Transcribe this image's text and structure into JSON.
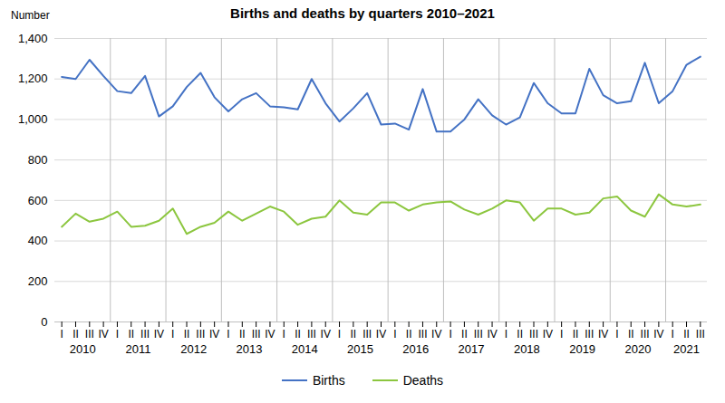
{
  "chart_data": {
    "type": "line",
    "title": "Births and deaths by quarters 2010–2021",
    "ylabel": "Number",
    "categories": [
      "I",
      "II",
      "III",
      "IV",
      "I",
      "II",
      "III",
      "IV",
      "I",
      "II",
      "III",
      "IV",
      "I",
      "II",
      "III",
      "IV",
      "I",
      "II",
      "III",
      "IV",
      "I",
      "II",
      "III",
      "IV",
      "I",
      "II",
      "III",
      "IV",
      "I",
      "II",
      "III",
      "IV",
      "I",
      "II",
      "III",
      "IV",
      "I",
      "II",
      "III",
      "IV",
      "I",
      "II",
      "III",
      "IV",
      "I",
      "II",
      "III"
    ],
    "x_groups": [
      "2010",
      "2011",
      "2012",
      "2013",
      "2014",
      "2015",
      "2016",
      "2017",
      "2018",
      "2019",
      "2020",
      "2021"
    ],
    "series": [
      {
        "name": "Births",
        "color": "#4472c4",
        "values": [
          1210,
          1200,
          1295,
          1215,
          1140,
          1130,
          1215,
          1015,
          1065,
          1160,
          1230,
          1110,
          1040,
          1100,
          1130,
          1065,
          1060,
          1050,
          1200,
          1080,
          990,
          1055,
          1130,
          975,
          980,
          950,
          1150,
          940,
          940,
          1000,
          1100,
          1020,
          975,
          1010,
          1180,
          1080,
          1030,
          1030,
          1250,
          1120,
          1080,
          1090,
          1280,
          1080,
          1140,
          1270,
          1310
        ]
      },
      {
        "name": "Deaths",
        "color": "#8cc63f",
        "values": [
          470,
          535,
          495,
          510,
          545,
          470,
          475,
          500,
          560,
          435,
          470,
          490,
          545,
          500,
          535,
          570,
          545,
          480,
          510,
          520,
          600,
          540,
          530,
          590,
          590,
          550,
          580,
          590,
          595,
          555,
          530,
          560,
          600,
          590,
          500,
          560,
          560,
          530,
          540,
          610,
          620,
          550,
          520,
          630,
          580,
          570,
          580
        ]
      }
    ],
    "ylim": [
      0,
      1400
    ],
    "yticks": [
      0,
      200,
      400,
      600,
      800,
      {
        "value": 1000,
        "label": "1,000"
      },
      {
        "value": 1200,
        "label": "1,200"
      },
      {
        "value": 1400,
        "label": "1,400"
      }
    ],
    "grid": true,
    "legend": "bottom"
  }
}
